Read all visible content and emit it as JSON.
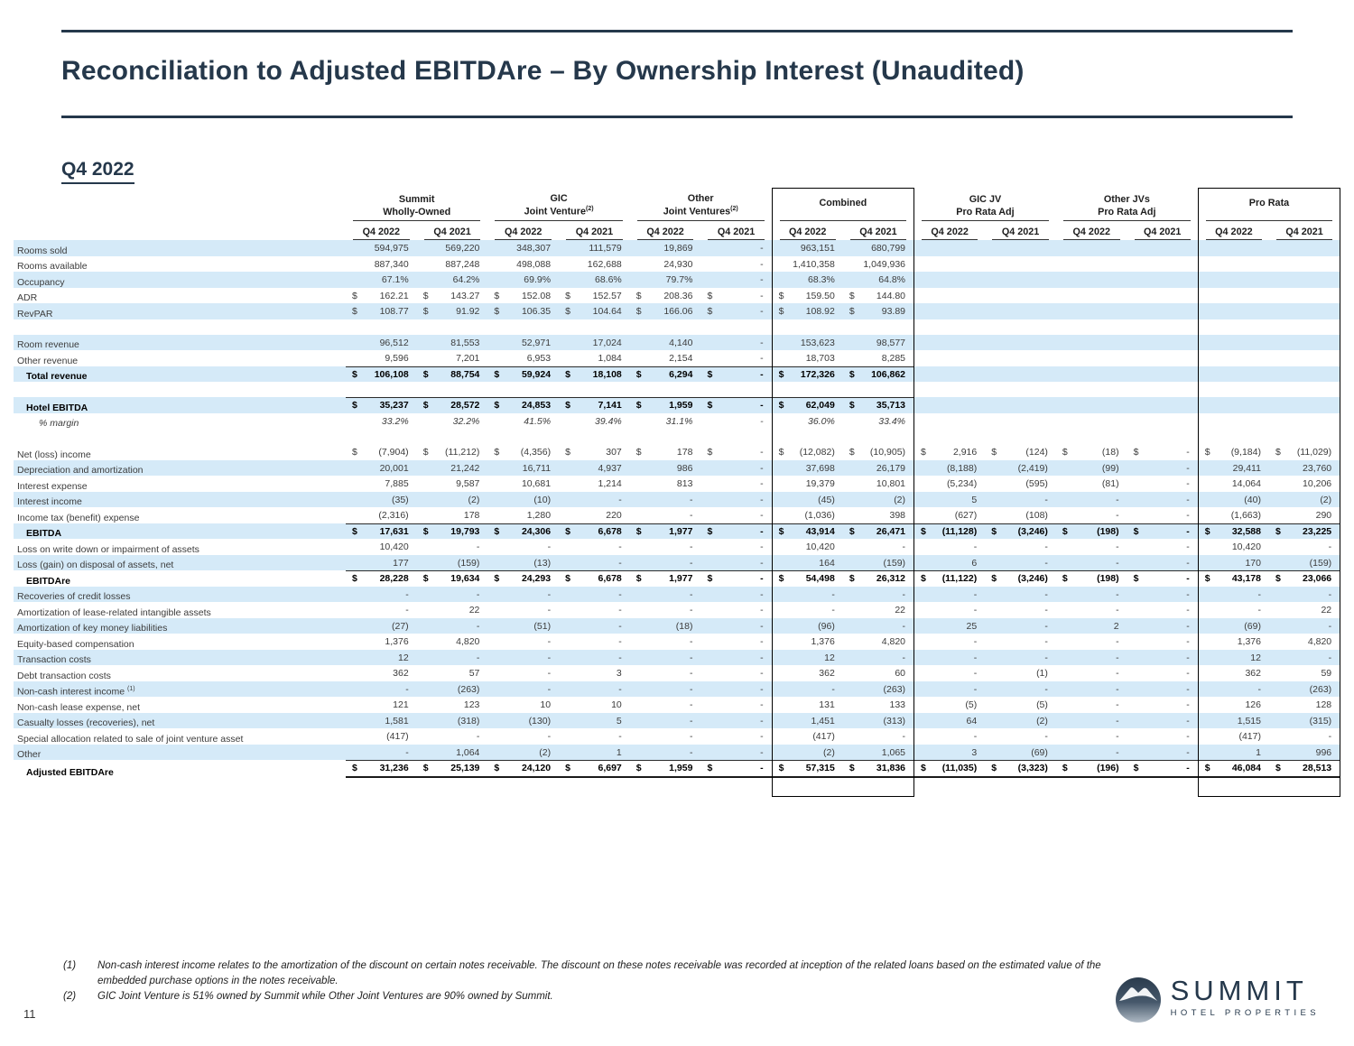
{
  "page": {
    "title": "Reconciliation to Adjusted EBITDAre – By Ownership Interest (Unaudited)",
    "subtitle": "Q4 2022",
    "page_number": "11"
  },
  "logo": {
    "name": "SUMMIT",
    "tagline": "HOTEL PROPERTIES"
  },
  "colors": {
    "navy": "#25384b",
    "stripe": "#d5eaf8",
    "box_border": "#000000"
  },
  "table": {
    "groups": [
      {
        "line1": "Summit",
        "line2": "Wholly-Owned",
        "sup": "",
        "boxed": false
      },
      {
        "line1": "GIC",
        "line2": "Joint Venture",
        "sup": "(2)",
        "boxed": false
      },
      {
        "line1": "Other",
        "line2": "Joint Ventures",
        "sup": "(2)",
        "boxed": false
      },
      {
        "line1": "Combined",
        "line2": "",
        "sup": "",
        "boxed": true
      },
      {
        "line1": "GIC JV",
        "line2": "Pro Rata Adj",
        "sup": "",
        "boxed": false
      },
      {
        "line1": "Other JVs",
        "line2": "Pro Rata Adj",
        "sup": "",
        "boxed": false
      },
      {
        "line1": "Pro Rata",
        "line2": "",
        "sup": "",
        "boxed": true
      }
    ],
    "period_headers": [
      "Q4 2022",
      "Q4 2021"
    ],
    "rows": [
      {
        "label": "Rooms sold",
        "shade": true,
        "cells": [
          "594,975",
          "569,220",
          "348,307",
          "111,579",
          "19,869",
          "-",
          "963,151",
          "680,799",
          "",
          "",
          "",
          "",
          "",
          ""
        ]
      },
      {
        "label": "Rooms available",
        "shade": false,
        "cells": [
          "887,340",
          "887,248",
          "498,088",
          "162,688",
          "24,930",
          "-",
          "1,410,358",
          "1,049,936",
          "",
          "",
          "",
          "",
          "",
          ""
        ]
      },
      {
        "label": "Occupancy",
        "shade": true,
        "cells": [
          "67.1%",
          "64.2%",
          "69.9%",
          "68.6%",
          "79.7%",
          "-",
          "68.3%",
          "64.8%",
          "",
          "",
          "",
          "",
          "",
          ""
        ]
      },
      {
        "label": "ADR",
        "shade": false,
        "cells": [
          "$|162.21",
          "$|143.27",
          "$|152.08",
          "$|152.57",
          "$|208.36",
          "$|-",
          "$|159.50",
          "$|144.80",
          "",
          "",
          "",
          "",
          "",
          ""
        ]
      },
      {
        "label": "RevPAR",
        "shade": true,
        "cells": [
          "$|108.77",
          "$|91.92",
          "$|106.35",
          "$|104.64",
          "$|166.06",
          "$|-",
          "$|108.92",
          "$|93.89",
          "",
          "",
          "",
          "",
          "",
          ""
        ]
      },
      {
        "spacer": true
      },
      {
        "label": "Room revenue",
        "shade": true,
        "cells": [
          "96,512",
          "81,553",
          "52,971",
          "17,024",
          "4,140",
          "-",
          "153,623",
          "98,577",
          "",
          "",
          "",
          "",
          "",
          ""
        ]
      },
      {
        "label": "Other revenue",
        "shade": false,
        "cells": [
          "9,596",
          "7,201",
          "6,953",
          "1,084",
          "2,154",
          "-",
          "18,703",
          "8,285",
          "",
          "",
          "",
          "",
          "",
          ""
        ]
      },
      {
        "label": "Total revenue",
        "shade": true,
        "bold": true,
        "indent": 1,
        "rule": true,
        "cells": [
          "$|106,108",
          "$|88,754",
          "$|59,924",
          "$|18,108",
          "$|6,294",
          "$|-",
          "$|172,326",
          "$|106,862",
          "",
          "",
          "",
          "",
          "",
          ""
        ]
      },
      {
        "spacer": true
      },
      {
        "label": "Hotel EBITDA",
        "shade": true,
        "bold": true,
        "indent": 1,
        "rule": true,
        "cells": [
          "$|35,237",
          "$|28,572",
          "$|24,853",
          "$|7,141",
          "$|1,959",
          "$|-",
          "$|62,049",
          "$|35,713",
          "",
          "",
          "",
          "",
          "",
          ""
        ]
      },
      {
        "label": "% margin",
        "shade": false,
        "italic": true,
        "indent": 2,
        "cells": [
          "33.2%",
          "32.2%",
          "41.5%",
          "39.4%",
          "31.1%",
          "-",
          "36.0%",
          "33.4%",
          "",
          "",
          "",
          "",
          "",
          ""
        ]
      },
      {
        "spacer": true
      },
      {
        "label": "Net (loss) income",
        "shade": false,
        "cells": [
          "$|(7,904)",
          "$|(11,212)",
          "$|(4,356)",
          "$|307",
          "$|178",
          "$|-",
          "$|(12,082)",
          "$|(10,905)",
          "$|2,916",
          "$|(124)",
          "$|(18)",
          "$|-",
          "$|(9,184)",
          "$|(11,029)"
        ]
      },
      {
        "label": "Depreciation and amortization",
        "shade": true,
        "cells": [
          "20,001",
          "21,242",
          "16,711",
          "4,937",
          "986",
          "-",
          "37,698",
          "26,179",
          "(8,188)",
          "(2,419)",
          "(99)",
          "-",
          "29,411",
          "23,760"
        ]
      },
      {
        "label": "Interest expense",
        "shade": false,
        "cells": [
          "7,885",
          "9,587",
          "10,681",
          "1,214",
          "813",
          "-",
          "19,379",
          "10,801",
          "(5,234)",
          "(595)",
          "(81)",
          "-",
          "14,064",
          "10,206"
        ]
      },
      {
        "label": "Interest income",
        "shade": true,
        "cells": [
          "(35)",
          "(2)",
          "(10)",
          "-",
          "-",
          "-",
          "(45)",
          "(2)",
          "5",
          "-",
          "-",
          "-",
          "(40)",
          "(2)"
        ]
      },
      {
        "label": "Income tax (benefit) expense",
        "shade": false,
        "cells": [
          "(2,316)",
          "178",
          "1,280",
          "220",
          "-",
          "-",
          "(1,036)",
          "398",
          "(627)",
          "(108)",
          "-",
          "-",
          "(1,663)",
          "290"
        ]
      },
      {
        "label": "EBITDA",
        "shade": true,
        "bold": true,
        "indent": 1,
        "rule": true,
        "cells": [
          "$|17,631",
          "$|19,793",
          "$|24,306",
          "$|6,678",
          "$|1,977",
          "$|-",
          "$|43,914",
          "$|26,471",
          "$|(11,128)",
          "$|(3,246)",
          "$|(198)",
          "$|-",
          "$|32,588",
          "$|23,225"
        ]
      },
      {
        "label": "Loss on write down or impairment of assets",
        "shade": false,
        "cells": [
          "10,420",
          "-",
          "-",
          "-",
          "-",
          "-",
          "10,420",
          "-",
          "-",
          "-",
          "-",
          "-",
          "10,420",
          "-"
        ]
      },
      {
        "label": "Loss (gain) on disposal of assets, net",
        "shade": true,
        "cells": [
          "177",
          "(159)",
          "(13)",
          "-",
          "-",
          "-",
          "164",
          "(159)",
          "6",
          "-",
          "-",
          "-",
          "170",
          "(159)"
        ]
      },
      {
        "label": "EBITDAre",
        "shade": false,
        "bold": true,
        "indent": 1,
        "rule": true,
        "cells": [
          "$|28,228",
          "$|19,634",
          "$|24,293",
          "$|6,678",
          "$|1,977",
          "$|-",
          "$|54,498",
          "$|26,312",
          "$|(11,122)",
          "$|(3,246)",
          "$|(198)",
          "$|-",
          "$|43,178",
          "$|23,066"
        ]
      },
      {
        "label": "Recoveries of credit losses",
        "shade": true,
        "cells": [
          "-",
          "-",
          "-",
          "-",
          "-",
          "-",
          "-",
          "-",
          "-",
          "-",
          "-",
          "-",
          "-",
          "-"
        ]
      },
      {
        "label": "Amortization of lease-related intangible assets",
        "shade": false,
        "cells": [
          "-",
          "22",
          "-",
          "-",
          "-",
          "-",
          "-",
          "22",
          "-",
          "-",
          "-",
          "-",
          "-",
          "22"
        ]
      },
      {
        "label": "Amortization of key money liabilities",
        "shade": true,
        "cells": [
          "(27)",
          "-",
          "(51)",
          "-",
          "(18)",
          "-",
          "(96)",
          "-",
          "25",
          "-",
          "2",
          "-",
          "(69)",
          "-"
        ]
      },
      {
        "label": "Equity-based compensation",
        "shade": false,
        "cells": [
          "1,376",
          "4,820",
          "-",
          "-",
          "-",
          "-",
          "1,376",
          "4,820",
          "-",
          "-",
          "-",
          "-",
          "1,376",
          "4,820"
        ]
      },
      {
        "label": "Transaction costs",
        "shade": true,
        "cells": [
          "12",
          "-",
          "-",
          "-",
          "-",
          "-",
          "12",
          "-",
          "-",
          "-",
          "-",
          "-",
          "12",
          "-"
        ]
      },
      {
        "label": "Debt transaction costs",
        "shade": false,
        "cells": [
          "362",
          "57",
          "-",
          "3",
          "-",
          "-",
          "362",
          "60",
          "-",
          "(1)",
          "-",
          "-",
          "362",
          "59"
        ]
      },
      {
        "label": "Non-cash interest income",
        "sup": "(1)",
        "shade": true,
        "cells": [
          "-",
          "(263)",
          "-",
          "-",
          "-",
          "-",
          "-",
          "(263)",
          "-",
          "-",
          "-",
          "-",
          "-",
          "(263)"
        ]
      },
      {
        "label": "Non-cash lease expense, net",
        "shade": false,
        "cells": [
          "121",
          "123",
          "10",
          "10",
          "-",
          "-",
          "131",
          "133",
          "(5)",
          "(5)",
          "-",
          "-",
          "126",
          "128"
        ]
      },
      {
        "label": "Casualty losses (recoveries), net",
        "shade": true,
        "cells": [
          "1,581",
          "(318)",
          "(130)",
          "5",
          "-",
          "-",
          "1,451",
          "(313)",
          "64",
          "(2)",
          "-",
          "-",
          "1,515",
          "(315)"
        ]
      },
      {
        "label": "Special allocation related to sale of joint venture asset",
        "shade": false,
        "cells": [
          "(417)",
          "-",
          "-",
          "-",
          "-",
          "-",
          "(417)",
          "-",
          "-",
          "-",
          "-",
          "-",
          "(417)",
          "-"
        ]
      },
      {
        "label": "Other",
        "shade": true,
        "cells": [
          "-",
          "1,064",
          "(2)",
          "1",
          "-",
          "-",
          "(2)",
          "1,065",
          "3",
          "(69)",
          "-",
          "-",
          "1",
          "996"
        ]
      },
      {
        "label": "Adjusted EBITDAre",
        "shade": false,
        "bold": true,
        "indent": 1,
        "rule": true,
        "rule_below": true,
        "cells": [
          "$|31,236",
          "$|25,139",
          "$|24,120",
          "$|6,697",
          "$|1,959",
          "$|-",
          "$|57,315",
          "$|31,836",
          "$|(11,035)",
          "$|(3,323)",
          "$|(196)",
          "$|-",
          "$|46,084",
          "$|28,513"
        ]
      }
    ]
  },
  "footnotes": [
    {
      "num": "(1)",
      "text": "Non-cash interest income relates to the amortization of the discount on certain notes receivable. The discount on these notes receivable was recorded at inception of the related loans based on the estimated value of the embedded purchase options in the notes receivable."
    },
    {
      "num": "(2)",
      "text": "GIC Joint Venture is 51% owned by Summit while Other Joint Ventures are 90% owned by Summit."
    }
  ]
}
